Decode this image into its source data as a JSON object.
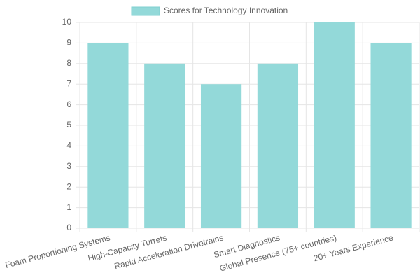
{
  "chart_data": {
    "type": "bar",
    "legend": "Scores for Technology Innovation",
    "categories": [
      "Foam Proportioning Systems",
      "High-Capacity Turrets",
      "Rapid Acceleration Drivetrains",
      "Smart Diagnostics",
      "Global Presence (75+ countries)",
      "20+ Years Experience"
    ],
    "values": [
      9,
      8,
      7,
      8,
      10,
      9
    ],
    "color": "#93d9d9",
    "ylim": [
      0,
      10
    ],
    "yticks": [
      0,
      1,
      2,
      3,
      4,
      5,
      6,
      7,
      8,
      9,
      10
    ],
    "grid": true
  }
}
